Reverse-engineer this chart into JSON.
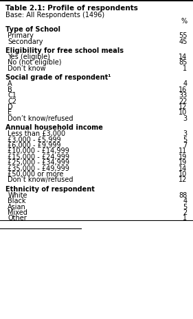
{
  "title_bold": "Table 2.1: Profile of respondents",
  "base_text": "Base: All Respondents (1496)",
  "col_header": "%",
  "sections": [
    {
      "header": "Type of School",
      "rows": [
        {
          "label": "Primary",
          "value": "55"
        },
        {
          "label": "Secondary",
          "value": "45"
        }
      ]
    },
    {
      "header": "Eligibility for free school meals",
      "rows": [
        {
          "label": "Yes (eligible)",
          "value": "14"
        },
        {
          "label": "No (not eligible)",
          "value": "85"
        },
        {
          "label": "Don’t know",
          "value": "1"
        }
      ]
    },
    {
      "header": "Social grade of respondent¹",
      "rows": [
        {
          "label": "A",
          "value": "4"
        },
        {
          "label": "B",
          "value": "16"
        },
        {
          "label": "C1",
          "value": "33"
        },
        {
          "label": "C2",
          "value": "22"
        },
        {
          "label": "D",
          "value": "12"
        },
        {
          "label": "E",
          "value": "10"
        },
        {
          "label": "Don’t know/refused",
          "value": "3"
        }
      ]
    },
    {
      "header": "Annual household income",
      "rows": [
        {
          "label": "Less than £3,000",
          "value": "3"
        },
        {
          "label": "£3,000 - £5,999",
          "value": "5"
        },
        {
          "label": "£6,000 - £9,999",
          "value": "7"
        },
        {
          "label": "£10,000 - £14,999",
          "value": "11"
        },
        {
          "label": "£15,000 - £24,999",
          "value": "19"
        },
        {
          "label": "£25,000 - £34,999",
          "value": "19"
        },
        {
          "label": "£35,000 - £49,999",
          "value": "14"
        },
        {
          "label": "£50,000 or more",
          "value": "10"
        },
        {
          "label": "Don’t know/refused",
          "value": "12"
        }
      ]
    },
    {
      "header": "Ethnicity of respondent",
      "rows": [
        {
          "label": "White",
          "value": "88"
        },
        {
          "label": "Black",
          "value": "4"
        },
        {
          "label": "Asian",
          "value": "5"
        },
        {
          "label": "Mixed",
          "value": "2"
        },
        {
          "label": "Other",
          "value": "1"
        }
      ]
    }
  ],
  "bg_color": "#ffffff",
  "text_color": "#000000",
  "font_size": 7.0,
  "header_font_size": 7.5
}
